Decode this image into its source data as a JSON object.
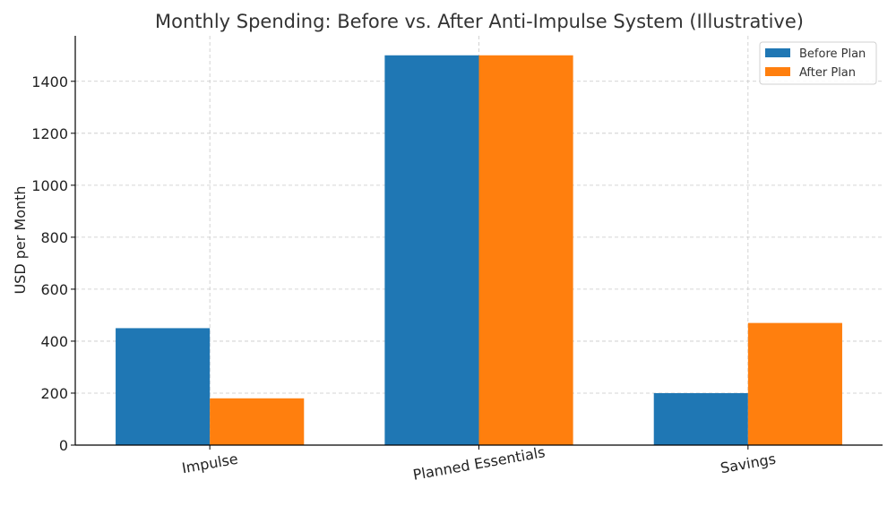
{
  "chart_data": {
    "type": "bar",
    "title": "Monthly Spending: Before vs. After Anti-Impulse System (Illustrative)",
    "xlabel": "",
    "ylabel": "USD per Month",
    "categories": [
      "Impulse",
      "Planned Essentials",
      "Savings"
    ],
    "series": [
      {
        "name": "Before Plan",
        "values": [
          450,
          1500,
          200
        ],
        "color": "#1f77b4"
      },
      {
        "name": "After Plan",
        "values": [
          180,
          1500,
          470
        ],
        "color": "#ff7f0e"
      }
    ],
    "ylim": [
      0,
      1575
    ],
    "yticks": [
      "0",
      "200",
      "400",
      "600",
      "800",
      "1000",
      "1200",
      "1400"
    ],
    "grid": true,
    "legend_position": "top-right",
    "tick_label_rotation_deg": -10
  }
}
